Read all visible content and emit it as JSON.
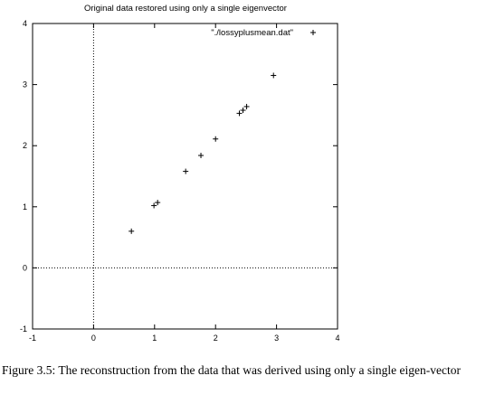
{
  "chart_data": {
    "type": "scatter",
    "title": "Original data restored using only a single eigenvector",
    "xlabel": "",
    "ylabel": "",
    "xlim": [
      -1,
      4
    ],
    "ylim": [
      -1,
      4
    ],
    "xticks": [
      "-1",
      "0",
      "1",
      "2",
      "3",
      "4"
    ],
    "yticks": [
      "-1",
      "0",
      "1",
      "2",
      "3",
      "4"
    ],
    "legend_position": "top-right",
    "zero_axes": "dotted",
    "marker": "+",
    "series": [
      {
        "name": "\"./lossyplusmean.dat\"",
        "points": [
          {
            "x": 0.62,
            "y": 0.6
          },
          {
            "x": 0.99,
            "y": 1.02
          },
          {
            "x": 1.05,
            "y": 1.07
          },
          {
            "x": 1.51,
            "y": 1.58
          },
          {
            "x": 1.76,
            "y": 1.84
          },
          {
            "x": 2.0,
            "y": 2.11
          },
          {
            "x": 2.39,
            "y": 2.53
          },
          {
            "x": 2.45,
            "y": 2.58
          },
          {
            "x": 2.51,
            "y": 2.64
          },
          {
            "x": 2.95,
            "y": 3.15
          }
        ]
      }
    ]
  },
  "caption": "Figure 3.5: The reconstruction from the data that was derived using only a single eigen-vector"
}
